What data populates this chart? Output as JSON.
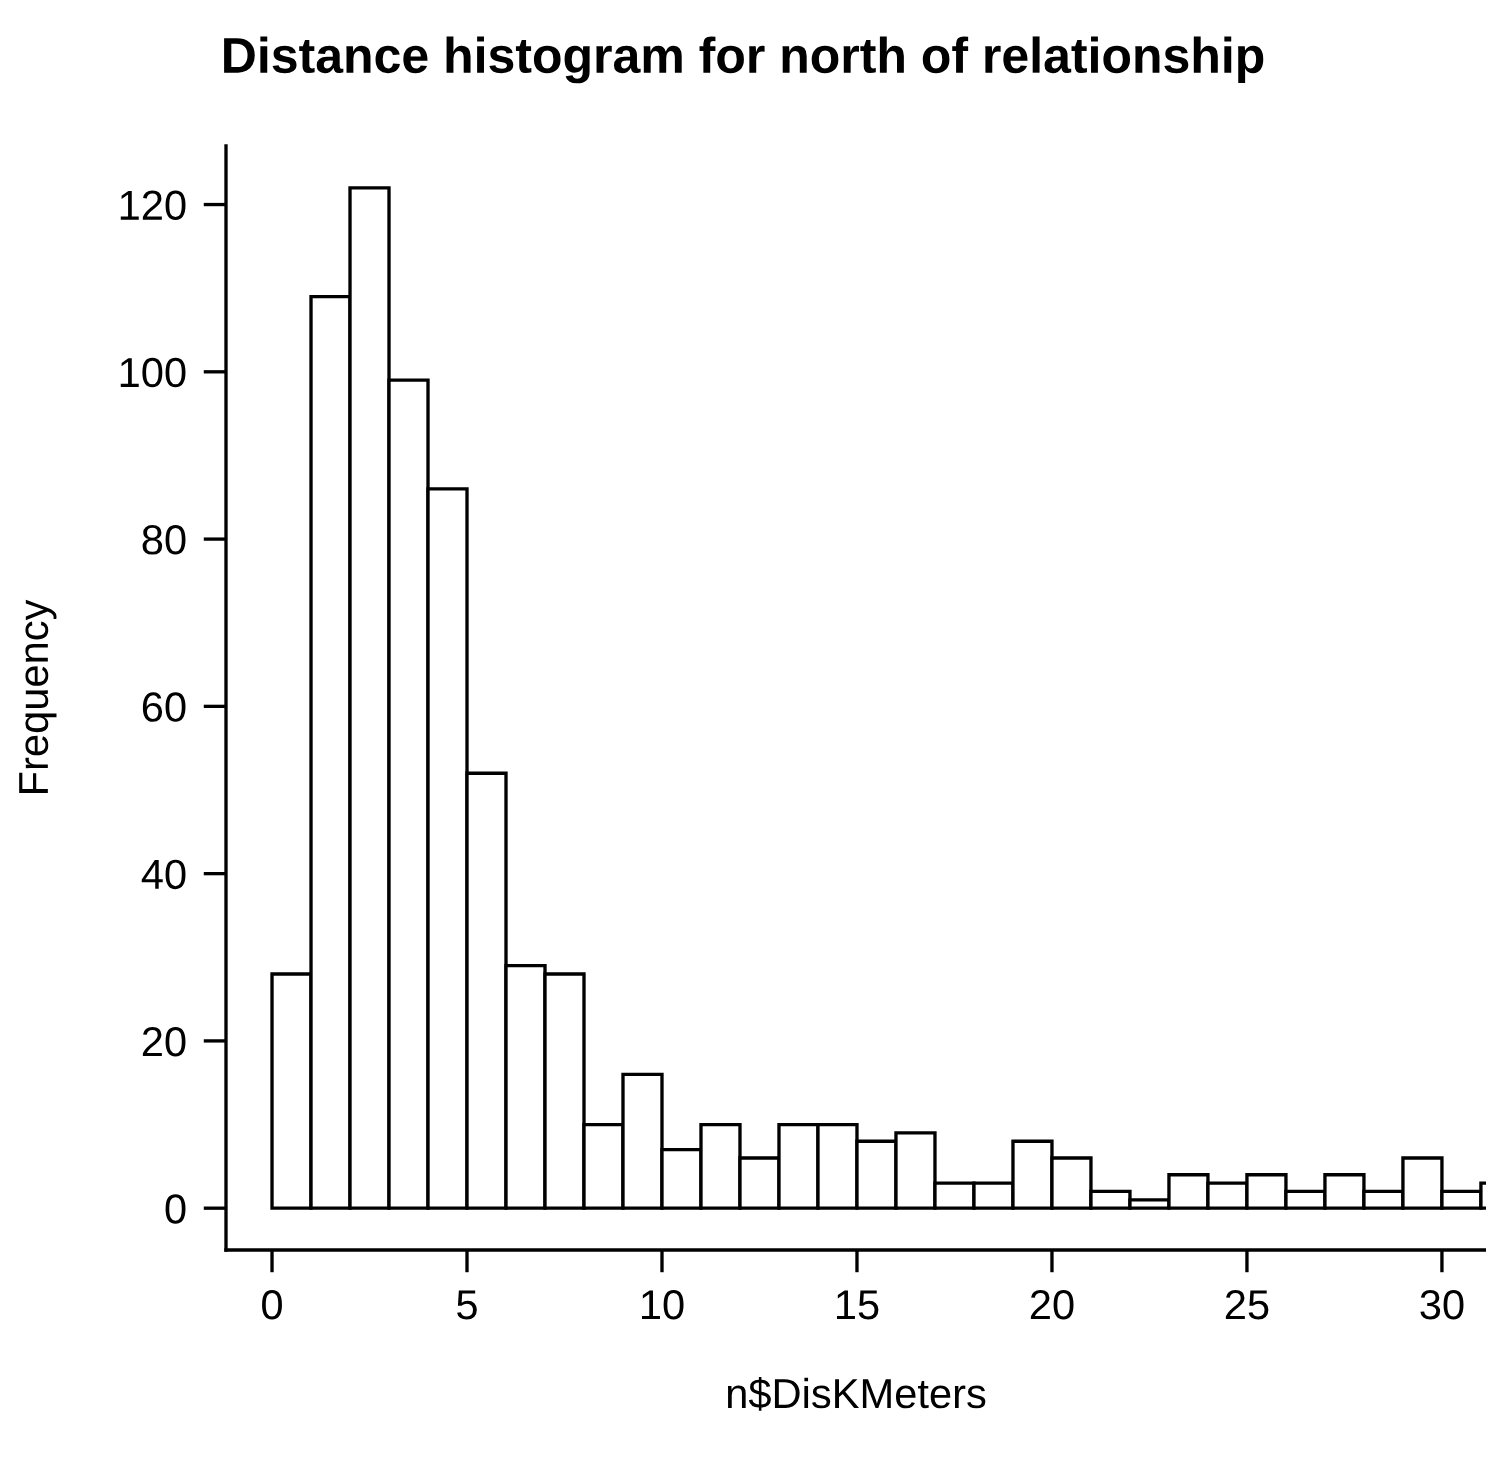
{
  "chart_data": {
    "type": "histogram",
    "title": "Distance histogram for north of relationship",
    "xlabel": "n$DisKMeters",
    "ylabel": "Frequency",
    "bins": [
      0,
      1,
      2,
      3,
      4,
      5,
      6,
      7,
      8,
      9,
      10,
      11,
      12,
      13,
      14,
      15,
      16,
      17,
      18,
      19,
      20,
      21,
      22,
      23,
      24,
      25,
      26,
      27,
      28,
      29,
      30,
      31,
      32
    ],
    "values": [
      28,
      109,
      122,
      99,
      86,
      52,
      29,
      28,
      10,
      16,
      7,
      10,
      6,
      10,
      10,
      8,
      9,
      3,
      3,
      8,
      6,
      2,
      1,
      4,
      3,
      4,
      2,
      4,
      2,
      6,
      2,
      3
    ],
    "color": "#ffffff",
    "xlim": [
      -1.18,
      31.13
    ],
    "ylim": [
      -5,
      127
    ],
    "xticks": [
      0,
      5,
      10,
      15,
      20,
      25,
      30
    ],
    "yticks": [
      0,
      20,
      40,
      60,
      80,
      100,
      120
    ],
    "grid": false
  }
}
